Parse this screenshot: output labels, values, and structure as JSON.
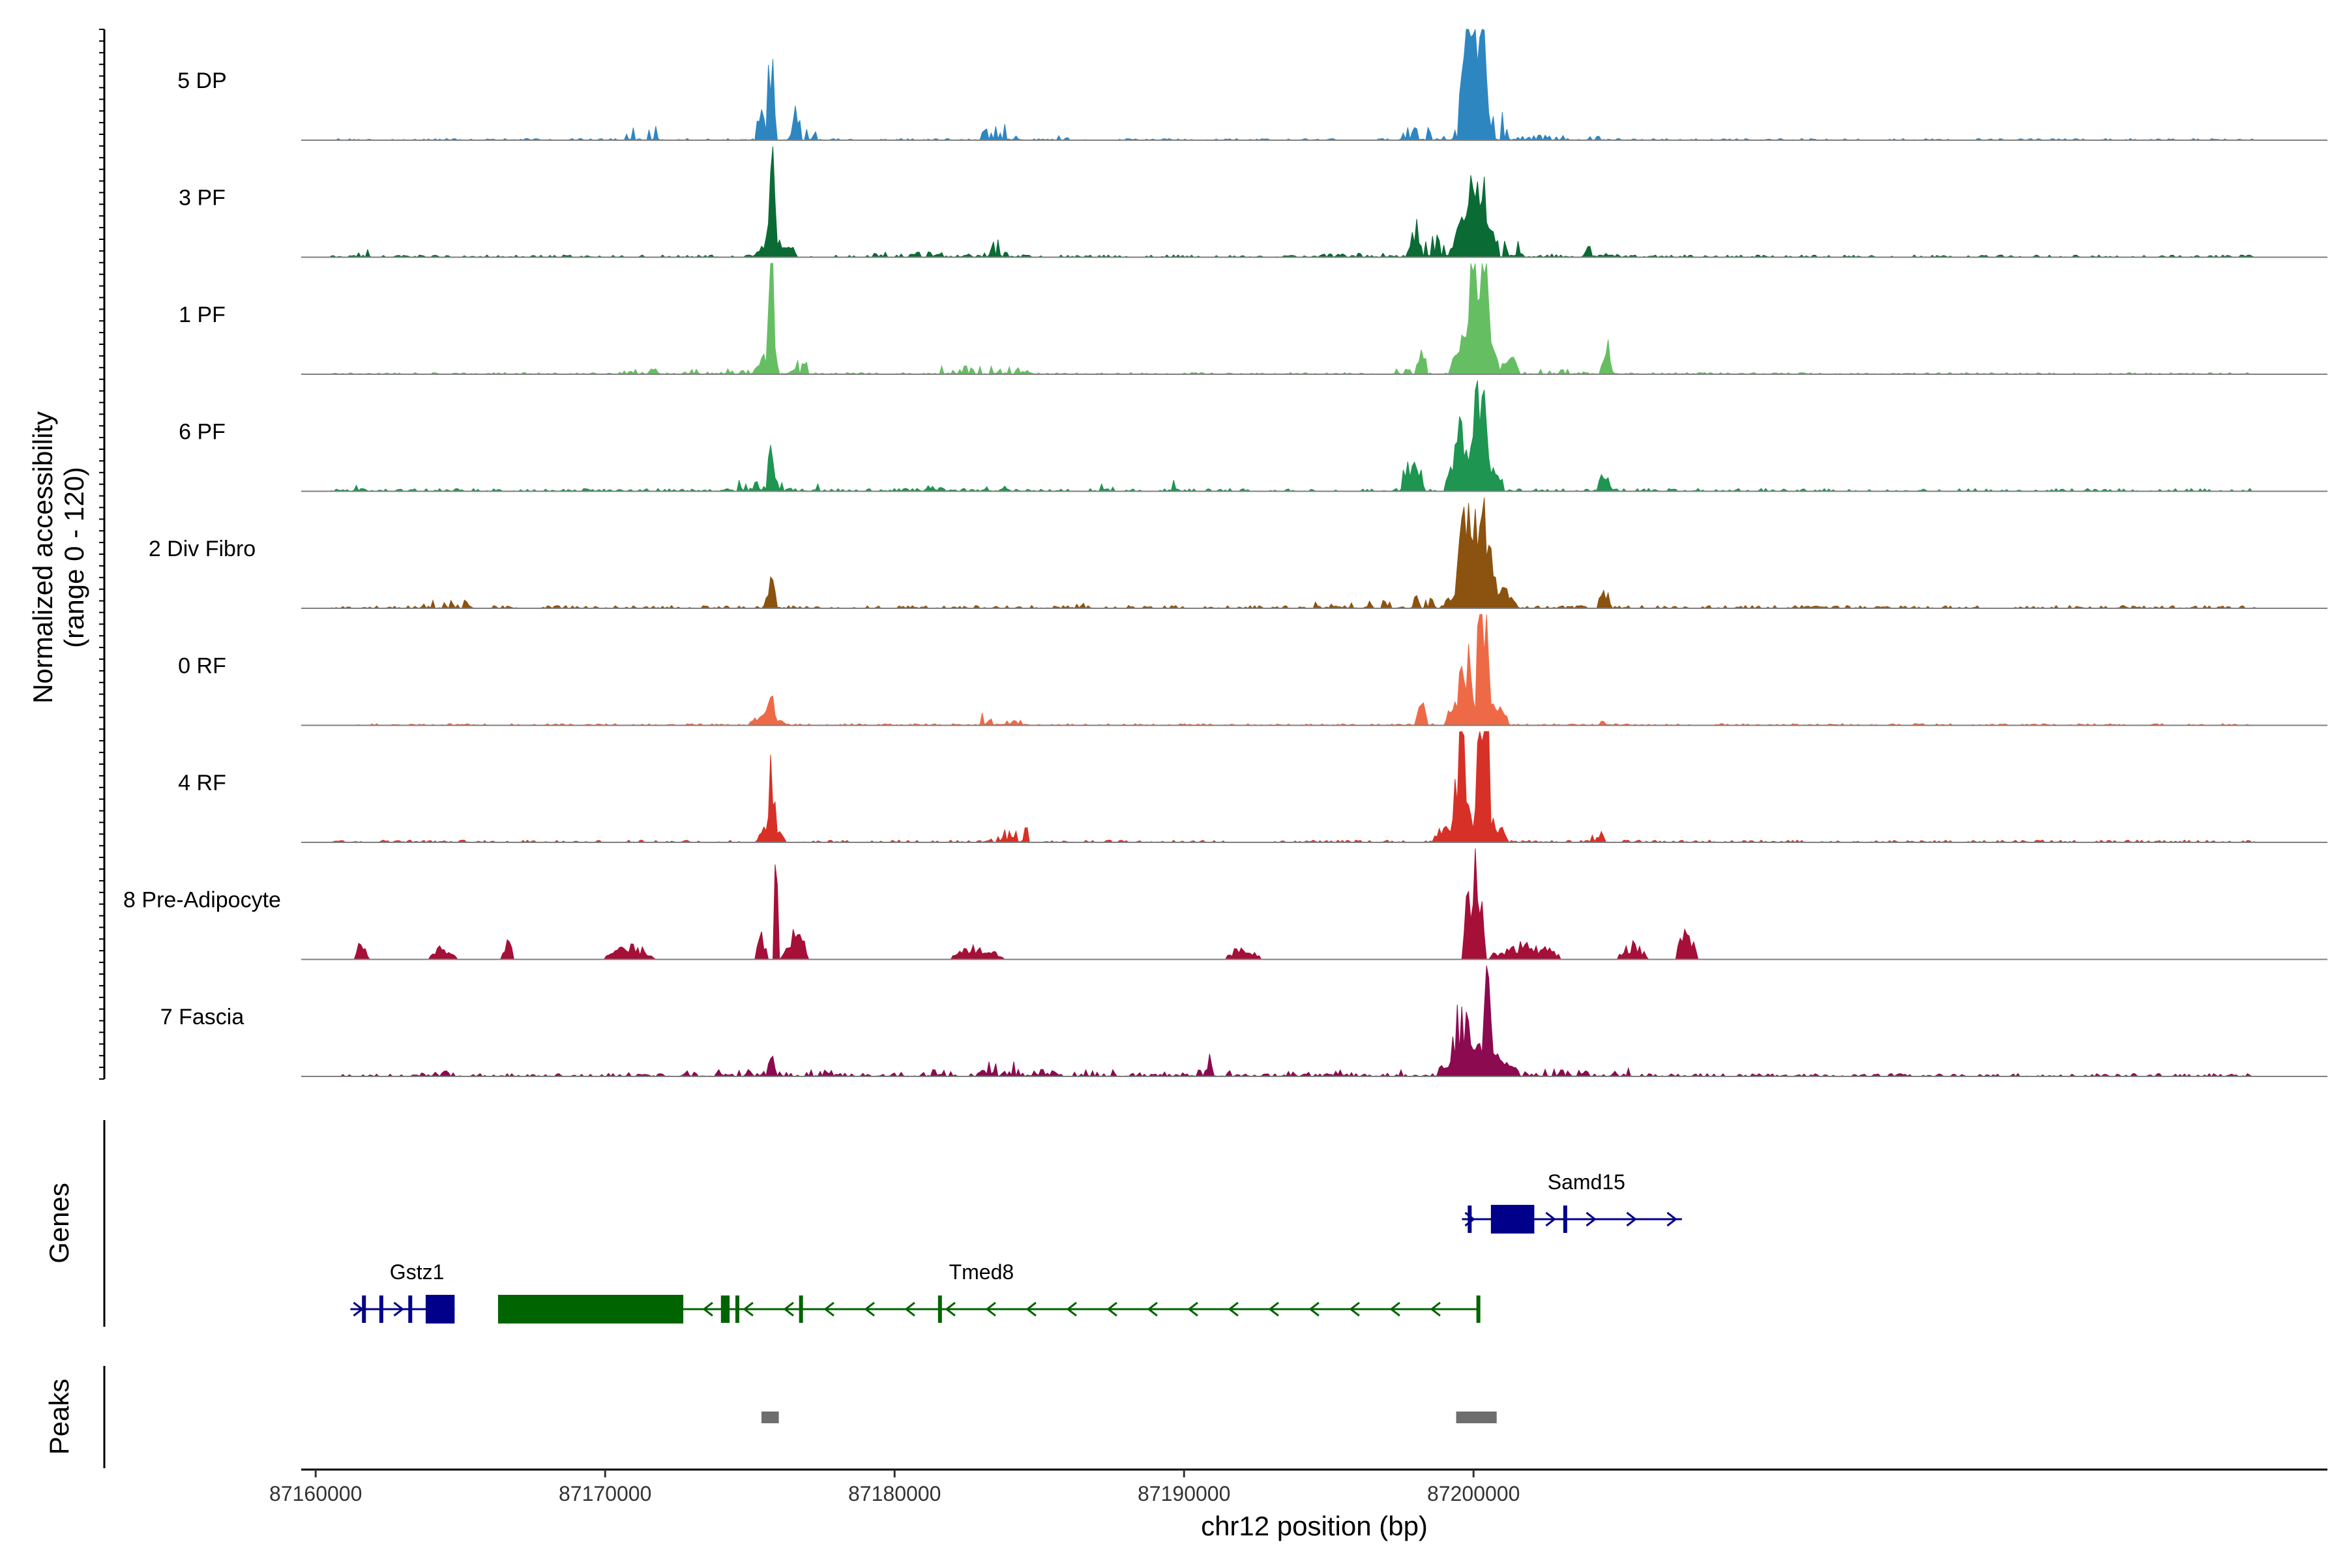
{
  "chart_data": {
    "type": "area",
    "y_axis_title": "Normalized accessibility",
    "y_axis_subtitle": "(range 0 - 120)",
    "y_range": [
      0,
      120
    ],
    "x_axis_title": "chr12 position (bp)",
    "x_range": [
      87159500,
      87229500
    ],
    "x_ticks": [
      87160000,
      87170000,
      87180000,
      87190000,
      87200000
    ],
    "x_tick_labels": [
      "87160000",
      "87170000",
      "87180000",
      "87190000",
      "87200000"
    ],
    "tracks": [
      {
        "name": "5 DP",
        "color": "#2E86C1",
        "peaks": [
          [
            87160500,
            87227000,
            0.6,
            30,
            2
          ],
          [
            87166800,
            87167100,
            2,
            80,
            1
          ],
          [
            87170600,
            87171800,
            5,
            40,
            2
          ],
          [
            87175600,
            87175900,
            50,
            1,
            3
          ],
          [
            87175700,
            87175800,
            30,
            8,
            3
          ],
          [
            87175200,
            87175600,
            18,
            5,
            2
          ],
          [
            87176400,
            87176800,
            12,
            10,
            3
          ],
          [
            87176900,
            87177300,
            5,
            40,
            2
          ],
          [
            87183000,
            87184500,
            6,
            30,
            2
          ],
          [
            87185000,
            87186000,
            2,
            80,
            1
          ],
          [
            87199500,
            87200600,
            55,
            2,
            3
          ],
          [
            87197500,
            87199500,
            5,
            40,
            2
          ],
          [
            87200600,
            87201200,
            10,
            20,
            2
          ],
          [
            87201500,
            87205000,
            2,
            60,
            1
          ]
        ]
      },
      {
        "name": "3 PF",
        "color": "#0B6B35",
        "peaks": [
          [
            87160500,
            87227000,
            0.8,
            30,
            2
          ],
          [
            87161300,
            87161800,
            3,
            50,
            1
          ],
          [
            87175600,
            87175900,
            42,
            1,
            3
          ],
          [
            87175200,
            87176600,
            10,
            5,
            2
          ],
          [
            87183300,
            87183700,
            8,
            20,
            2
          ],
          [
            87179000,
            87184800,
            2,
            60,
            1
          ],
          [
            87197700,
            87198200,
            14,
            10,
            3
          ],
          [
            87198300,
            87199200,
            8,
            20,
            2
          ],
          [
            87199800,
            87200500,
            52,
            2,
            3
          ],
          [
            87199200,
            87200900,
            22,
            5,
            2
          ],
          [
            87200800,
            87201600,
            8,
            20,
            2
          ],
          [
            87203800,
            87204300,
            5,
            20,
            2
          ],
          [
            87194500,
            87205000,
            1.5,
            80,
            1
          ]
        ]
      },
      {
        "name": "1 PF",
        "color": "#66BE63",
        "peaks": [
          [
            87160500,
            87227000,
            0.6,
            30,
            2
          ],
          [
            87170500,
            87177800,
            2,
            60,
            1
          ],
          [
            87175600,
            87175900,
            50,
            1,
            3
          ],
          [
            87175200,
            87176000,
            10,
            8,
            2
          ],
          [
            87176200,
            87177000,
            5,
            20,
            2
          ],
          [
            87181500,
            87184600,
            3,
            40,
            1
          ],
          [
            87198000,
            87198400,
            10,
            15,
            3
          ],
          [
            87199800,
            87200600,
            80,
            2,
            3
          ],
          [
            87199200,
            87200900,
            25,
            5,
            2
          ],
          [
            87200900,
            87201600,
            8,
            15,
            2
          ],
          [
            87204400,
            87204800,
            12,
            10,
            3
          ],
          [
            87197000,
            87205500,
            2,
            70,
            1
          ]
        ]
      },
      {
        "name": "6 PF",
        "color": "#1E9550",
        "peaks": [
          [
            87160500,
            87227000,
            1,
            30,
            2
          ],
          [
            87161400,
            87161800,
            3,
            40,
            1
          ],
          [
            87174600,
            87177500,
            4,
            40,
            2
          ],
          [
            87175600,
            87175900,
            18,
            3,
            3
          ],
          [
            87179500,
            87184800,
            2,
            60,
            1
          ],
          [
            87186700,
            87187600,
            3,
            40,
            1
          ],
          [
            87189400,
            87189900,
            4,
            30,
            2
          ],
          [
            87197500,
            87198300,
            16,
            5,
            3
          ],
          [
            87199300,
            87199800,
            32,
            5,
            3
          ],
          [
            87199900,
            87200600,
            65,
            2,
            3
          ],
          [
            87199000,
            87201000,
            20,
            5,
            2
          ],
          [
            87204300,
            87204800,
            8,
            15,
            3
          ]
        ]
      },
      {
        "name": "2 Div Fibro",
        "color": "#8B5210",
        "peaks": [
          [
            87160500,
            87227000,
            1,
            30,
            2
          ],
          [
            87163500,
            87165500,
            3,
            40,
            2
          ],
          [
            87175600,
            87175900,
            14,
            3,
            3
          ],
          [
            87175300,
            87176000,
            5,
            20,
            2
          ],
          [
            87185500,
            87186600,
            3,
            40,
            2
          ],
          [
            87194500,
            87197500,
            3,
            40,
            1
          ],
          [
            87197700,
            87198600,
            5,
            30,
            2
          ],
          [
            87199400,
            87200700,
            48,
            2,
            3
          ],
          [
            87199000,
            87201500,
            15,
            5,
            2
          ],
          [
            87204300,
            87204800,
            7,
            15,
            3
          ]
        ]
      },
      {
        "name": "0 RF",
        "color": "#EE6A47",
        "peaks": [
          [
            87160500,
            87227000,
            0.6,
            30,
            2
          ],
          [
            87175600,
            87175900,
            20,
            3,
            3
          ],
          [
            87175000,
            87176200,
            6,
            15,
            2
          ],
          [
            87182900,
            87184600,
            5,
            30,
            2
          ],
          [
            87198000,
            87198400,
            9,
            15,
            3
          ],
          [
            87199400,
            87200000,
            30,
            5,
            3
          ],
          [
            87200100,
            87200600,
            68,
            2,
            3
          ],
          [
            87199000,
            87201200,
            15,
            5,
            2
          ],
          [
            87204400,
            87204800,
            4,
            20,
            2
          ]
        ]
      },
      {
        "name": "4 RF",
        "color": "#D73027",
        "peaks": [
          [
            87160500,
            87227000,
            0.8,
            30,
            2
          ],
          [
            87175600,
            87175900,
            35,
            3,
            3
          ],
          [
            87175300,
            87176200,
            10,
            10,
            2
          ],
          [
            87183000,
            87184600,
            6,
            30,
            2
          ],
          [
            87199300,
            87199900,
            40,
            5,
            3
          ],
          [
            87200100,
            87200600,
            68,
            2,
            3
          ],
          [
            87198600,
            87201200,
            14,
            5,
            2
          ],
          [
            87204000,
            87204600,
            4,
            20,
            2
          ]
        ]
      },
      {
        "name": "8 Pre-Adipocyte",
        "color": "#A50F38",
        "peaks": [
          [
            87161400,
            87161800,
            8,
            3,
            3
          ],
          [
            87163900,
            87164900,
            5,
            3,
            3
          ],
          [
            87166400,
            87166800,
            9,
            3,
            3
          ],
          [
            87170000,
            87171700,
            5,
            3,
            3
          ],
          [
            87175200,
            87175600,
            12,
            3,
            3
          ],
          [
            87175800,
            87176000,
            50,
            2,
            3
          ],
          [
            87176100,
            87177000,
            10,
            3,
            3
          ],
          [
            87182000,
            87183800,
            5,
            3,
            3
          ],
          [
            87191500,
            87192600,
            5,
            3,
            3
          ],
          [
            87199600,
            87200400,
            45,
            3,
            3
          ],
          [
            87200600,
            87203000,
            6,
            3,
            3
          ],
          [
            87205000,
            87206000,
            6,
            3,
            3
          ],
          [
            87207000,
            87207700,
            10,
            3,
            3
          ]
        ]
      },
      {
        "name": "7 Fascia",
        "color": "#8B0A50",
        "peaks": [
          [
            87160500,
            87227000,
            1,
            30,
            2
          ],
          [
            87163500,
            87164800,
            2,
            40,
            2
          ],
          [
            87170000,
            87182000,
            2.5,
            60,
            2
          ],
          [
            87175600,
            87175900,
            7,
            10,
            3
          ],
          [
            87182800,
            87184500,
            6,
            30,
            2
          ],
          [
            87184500,
            87197500,
            2.5,
            60,
            2
          ],
          [
            87190700,
            87191000,
            8,
            15,
            3
          ],
          [
            87199200,
            87200000,
            28,
            5,
            3
          ],
          [
            87200300,
            87200700,
            42,
            3,
            3
          ],
          [
            87198800,
            87201500,
            14,
            5,
            2
          ],
          [
            87201500,
            87205500,
            3,
            40,
            2
          ]
        ]
      }
    ],
    "genes": [
      {
        "name": "Gstz1",
        "strand": "+",
        "color": "#00008B",
        "row": 2,
        "start": 87161200,
        "end": 87164800,
        "exons": [
          [
            87161600,
            87161700
          ],
          [
            87162200,
            87162300
          ],
          [
            87163200,
            87163300
          ],
          [
            87163800,
            87164800
          ]
        ]
      },
      {
        "name": "Tmed8",
        "strand": "-",
        "color": "#006400",
        "row": 2,
        "start": 87166300,
        "end": 87200200,
        "exons": [
          [
            87166300,
            87172700
          ],
          [
            87174000,
            87174300
          ],
          [
            87174500,
            87174600
          ],
          [
            87176700,
            87176800
          ],
          [
            87181500,
            87181600
          ],
          [
            87200100,
            87200200
          ]
        ]
      },
      {
        "name": "Samd15",
        "strand": "+",
        "color": "#00008B",
        "row": 1,
        "start": 87199600,
        "end": 87207200,
        "exons": [
          [
            87199800,
            87199900
          ],
          [
            87200600,
            87202100
          ],
          [
            87203100,
            87203200
          ]
        ]
      }
    ],
    "peaks_track": {
      "label": "Peaks",
      "regions": [
        [
          87175400,
          87176000
        ],
        [
          87199400,
          87200800
        ]
      ],
      "color": "#6E6E6E"
    },
    "panel_labels": {
      "genes": "Genes",
      "peaks": "Peaks"
    }
  }
}
